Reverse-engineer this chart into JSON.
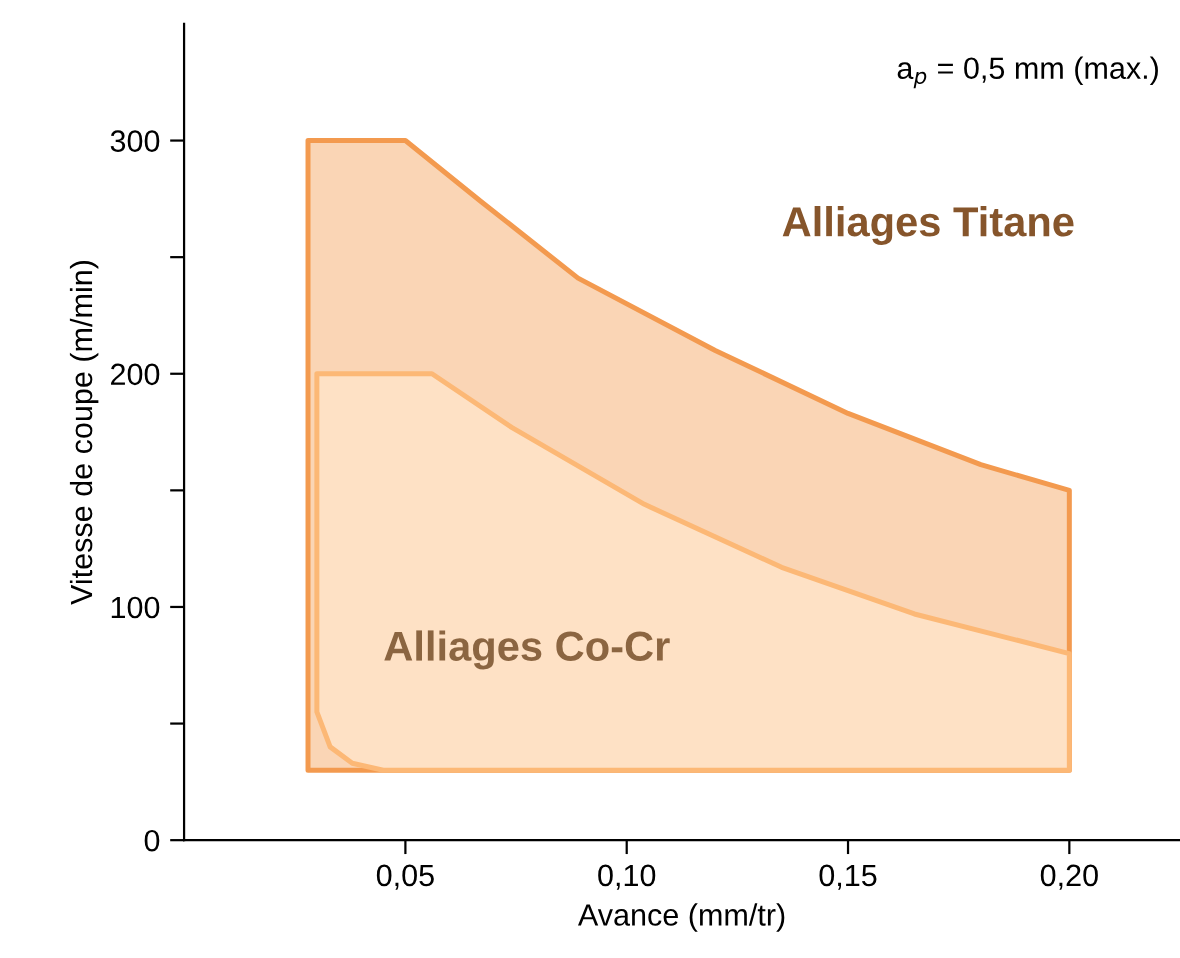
{
  "chart_data": {
    "type": "area",
    "xlabel": "Avance (mm/tr)",
    "ylabel": "Vitesse de coupe (m/min)",
    "annotations": [
      "a$_{p}$ = 0,5 mm (max.)"
    ],
    "series": [
      {
        "name": "Alliages Titane",
        "color": "#f39a4f",
        "x": [
          0.028,
          0.028,
          0.05,
          0.067,
          0.089,
          0.12,
          0.15,
          0.18,
          0.2,
          0.2
        ],
        "values": [
          30,
          300,
          300,
          274,
          241,
          210,
          183,
          161,
          150,
          30
        ]
      },
      {
        "name": "Alliages Co-Cr",
        "color": "#fcb876",
        "x": [
          0.045,
          0.038,
          0.033,
          0.03,
          0.03,
          0.056,
          0.074,
          0.104,
          0.135,
          0.165,
          0.2,
          0.2
        ],
        "values": [
          30,
          33,
          40,
          55,
          200,
          200,
          177,
          144,
          117,
          97,
          80,
          30
        ]
      }
    ],
    "xlim": [
      0,
      0.225
    ],
    "ylim": [
      0,
      350
    ],
    "xticks": [
      {
        "value": 0.05,
        "label": "0,05"
      },
      {
        "value": 0.1,
        "label": "0,10"
      },
      {
        "value": 0.15,
        "label": "0,15"
      },
      {
        "value": 0.2,
        "label": "0,20"
      }
    ],
    "yticks": [
      0,
      {
        "value": 50,
        "label": null
      },
      100,
      {
        "value": 150,
        "label": null
      },
      200,
      {
        "value": 250,
        "label": null
      },
      300
    ],
    "grid": false,
    "legend": false
  }
}
